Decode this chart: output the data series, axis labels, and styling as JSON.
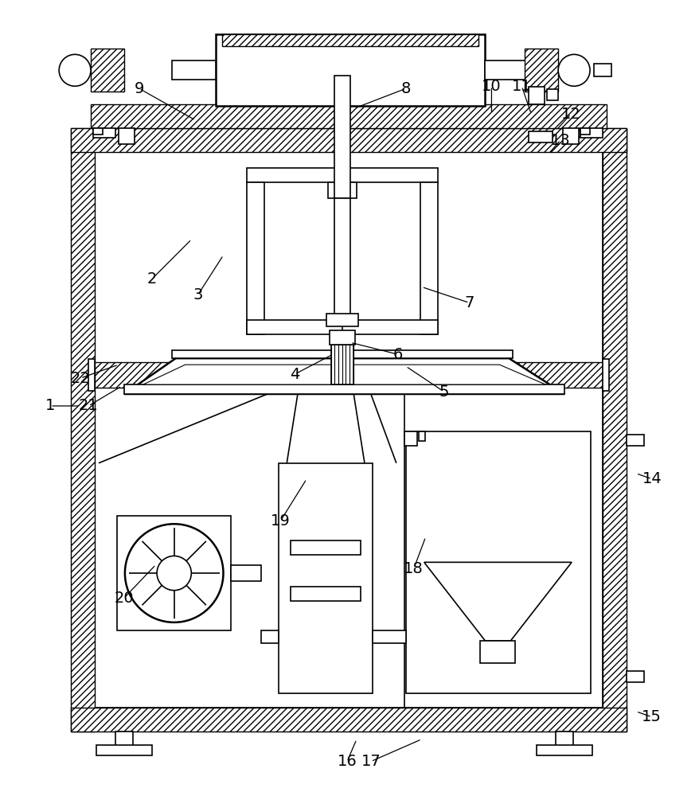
{
  "bg_color": "#ffffff",
  "line_color": "#000000",
  "figsize": [
    8.79,
    10.0
  ],
  "dpi": 100
}
